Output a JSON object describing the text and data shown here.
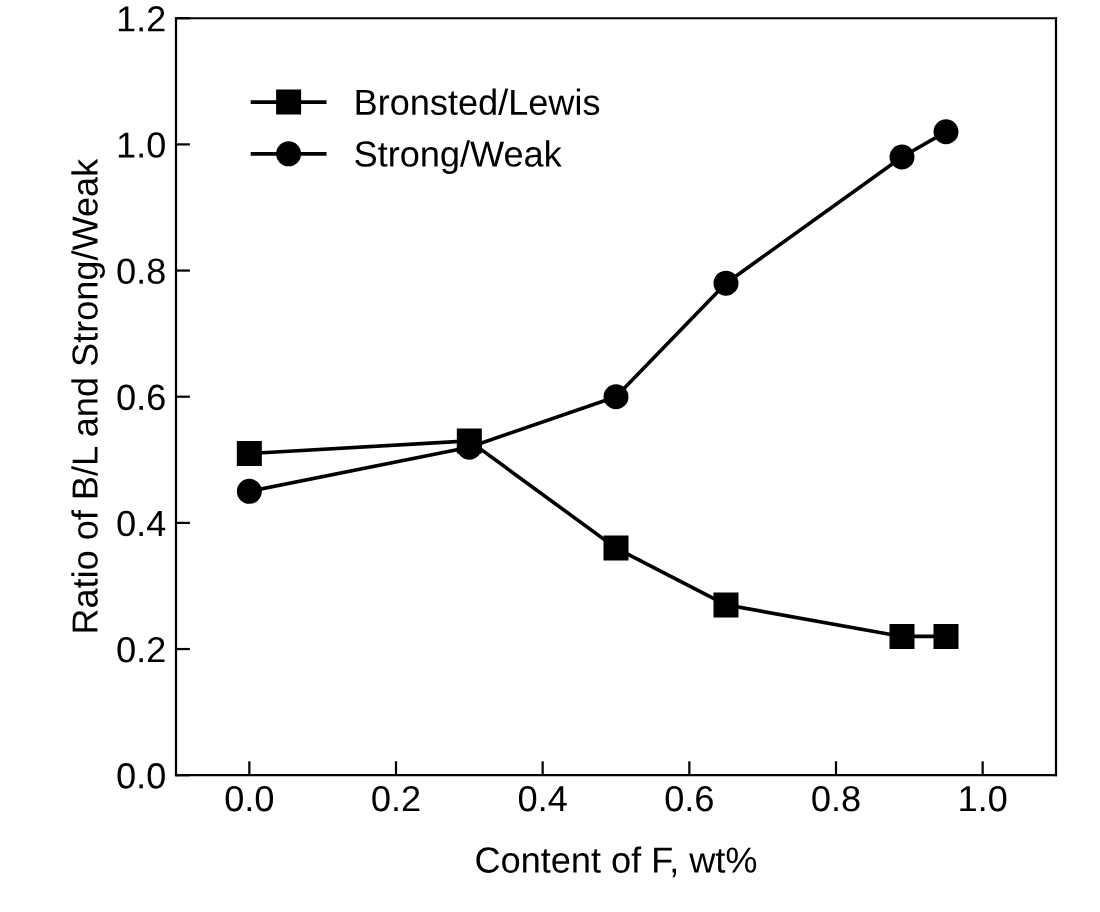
{
  "chart_data": {
    "type": "line",
    "xlabel": "Content of F, wt%",
    "ylabel": "Ratio of B/L and Strong/Weak",
    "xlim": [
      -0.1,
      1.1
    ],
    "xticks": [
      {
        "value": 0,
        "label": "0.0"
      },
      0.2,
      0.4,
      0.6,
      0.8,
      {
        "value": 1,
        "label": "1.0"
      }
    ],
    "ylim": [
      0,
      1.2
    ],
    "yticks": [
      {
        "value": 0,
        "label": "0.0"
      },
      0.2,
      0.4,
      0.6,
      0.8,
      {
        "value": 1,
        "label": "1.0"
      },
      1.2
    ],
    "grid": false,
    "legend": "top left",
    "series": [
      {
        "name": "Bronsted/Lewis",
        "color": "#000000",
        "marker": "square",
        "x": [
          0,
          0.3,
          0.5,
          0.65,
          0.89,
          0.95
        ],
        "values": [
          0.51,
          0.53,
          0.36,
          0.27,
          0.22,
          0.22
        ]
      },
      {
        "name": "Strong/Weak",
        "color": "#000000",
        "marker": "circle",
        "x": [
          0,
          0.3,
          0.5,
          0.65,
          0.89,
          0.95
        ],
        "values": [
          0.45,
          0.52,
          0.6,
          0.78,
          0.98,
          1.02
        ]
      }
    ]
  }
}
